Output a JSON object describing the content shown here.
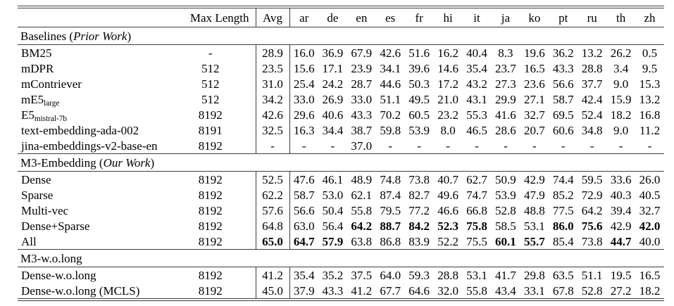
{
  "colors": {
    "text": "#000000",
    "rule": "#3c3c3c",
    "background": "#ffffff"
  },
  "header": {
    "model": "",
    "max_length": "Max Length",
    "avg": "Avg",
    "languages": [
      "ar",
      "de",
      "en",
      "es",
      "fr",
      "hi",
      "it",
      "ja",
      "ko",
      "pt",
      "ru",
      "th",
      "zh"
    ]
  },
  "sections": [
    {
      "title": {
        "prefix": "Baselines (",
        "italic": "Prior Work",
        "suffix": ")"
      },
      "rows": [
        {
          "model": "BM25",
          "subscript": "",
          "max_length": "-",
          "avg": "28.9",
          "avg_bold": false,
          "values": [
            "16.0",
            "36.9",
            "67.9",
            "42.6",
            "51.6",
            "16.2",
            "40.4",
            "8.3",
            "19.6",
            "36.2",
            "13.2",
            "26.2",
            "0.5"
          ],
          "bold": []
        },
        {
          "model": "mDPR",
          "subscript": "",
          "max_length": "512",
          "avg": "23.5",
          "avg_bold": false,
          "values": [
            "15.6",
            "17.1",
            "23.9",
            "34.1",
            "39.6",
            "14.6",
            "35.4",
            "23.7",
            "16.5",
            "43.3",
            "28.8",
            "3.4",
            "9.5"
          ],
          "bold": []
        },
        {
          "model": "mContriever",
          "subscript": "",
          "max_length": "512",
          "avg": "31.0",
          "avg_bold": false,
          "values": [
            "25.4",
            "24.2",
            "28.7",
            "44.6",
            "50.3",
            "17.2",
            "43.2",
            "27.3",
            "23.6",
            "56.6",
            "37.7",
            "9.0",
            "15.3"
          ],
          "bold": []
        },
        {
          "model": "mE5",
          "subscript": "large",
          "max_length": "512",
          "avg": "34.2",
          "avg_bold": false,
          "values": [
            "33.0",
            "26.9",
            "33.0",
            "51.1",
            "49.5",
            "21.0",
            "43.1",
            "29.9",
            "27.1",
            "58.7",
            "42.4",
            "15.9",
            "13.2"
          ],
          "bold": []
        },
        {
          "model": "E5",
          "subscript": "mistral-7b",
          "max_length": "8192",
          "avg": "42.6",
          "avg_bold": false,
          "values": [
            "29.6",
            "40.6",
            "43.3",
            "70.2",
            "60.5",
            "23.2",
            "55.3",
            "41.6",
            "32.7",
            "69.5",
            "52.4",
            "18.2",
            "16.8"
          ],
          "bold": []
        },
        {
          "model": "text-embedding-ada-002",
          "subscript": "",
          "max_length": "8191",
          "avg": "32.5",
          "avg_bold": false,
          "values": [
            "16.3",
            "34.4",
            "38.7",
            "59.8",
            "53.9",
            "8.0",
            "46.5",
            "28.6",
            "20.7",
            "60.6",
            "34.8",
            "9.0",
            "11.2"
          ],
          "bold": []
        },
        {
          "model": "jina-embeddings-v2-base-en",
          "subscript": "",
          "max_length": "8192",
          "avg": "-",
          "avg_bold": false,
          "values": [
            "-",
            "-",
            "37.0",
            "-",
            "-",
            "-",
            "-",
            "-",
            "-",
            "-",
            "-",
            "-",
            "-"
          ],
          "bold": []
        }
      ]
    },
    {
      "title": {
        "prefix": "M3-Embedding (",
        "italic": "Our Work",
        "suffix": ")"
      },
      "rows": [
        {
          "model": "Dense",
          "subscript": "",
          "max_length": "8192",
          "avg": "52.5",
          "avg_bold": false,
          "values": [
            "47.6",
            "46.1",
            "48.9",
            "74.8",
            "73.8",
            "40.7",
            "62.7",
            "50.9",
            "42.9",
            "74.4",
            "59.5",
            "33.6",
            "26.0"
          ],
          "bold": []
        },
        {
          "model": "Sparse",
          "subscript": "",
          "max_length": "8192",
          "avg": "62.2",
          "avg_bold": false,
          "values": [
            "58.7",
            "53.0",
            "62.1",
            "87.4",
            "82.7",
            "49.6",
            "74.7",
            "53.9",
            "47.9",
            "85.2",
            "72.9",
            "40.3",
            "40.5"
          ],
          "bold": []
        },
        {
          "model": "Multi-vec",
          "subscript": "",
          "max_length": "8192",
          "avg": "57.6",
          "avg_bold": false,
          "values": [
            "56.6",
            "50.4",
            "55.8",
            "79.5",
            "77.2",
            "46.6",
            "66.8",
            "52.8",
            "48.8",
            "77.5",
            "64.2",
            "39.4",
            "32.7"
          ],
          "bold": []
        },
        {
          "model": "Dense+Sparse",
          "subscript": "",
          "max_length": "8192",
          "avg": "64.8",
          "avg_bold": false,
          "values": [
            "63.0",
            "56.4",
            "64.2",
            "88.7",
            "84.2",
            "52.3",
            "75.8",
            "58.5",
            "53.1",
            "86.0",
            "75.6",
            "42.9",
            "42.0"
          ],
          "bold": [
            2,
            3,
            4,
            5,
            6,
            9,
            10,
            12
          ]
        },
        {
          "model": "All",
          "subscript": "",
          "max_length": "8192",
          "avg": "65.0",
          "avg_bold": true,
          "values": [
            "64.7",
            "57.9",
            "63.8",
            "86.8",
            "83.9",
            "52.2",
            "75.5",
            "60.1",
            "55.7",
            "85.4",
            "73.8",
            "44.7",
            "40.0"
          ],
          "bold": [
            0,
            1,
            7,
            8,
            11
          ]
        }
      ]
    },
    {
      "title": {
        "prefix": "M3-w.o.long",
        "italic": "",
        "suffix": ""
      },
      "rows": [
        {
          "model": "Dense-w.o.long",
          "subscript": "",
          "max_length": "8192",
          "avg": "41.2",
          "avg_bold": false,
          "values": [
            "35.4",
            "35.2",
            "37.5",
            "64.0",
            "59.3",
            "28.8",
            "53.1",
            "41.7",
            "29.8",
            "63.5",
            "51.1",
            "19.5",
            "16.5"
          ],
          "bold": []
        },
        {
          "model": "Dense-w.o.long (MCLS)",
          "subscript": "",
          "max_length": "8192",
          "avg": "45.0",
          "avg_bold": false,
          "values": [
            "37.9",
            "43.3",
            "41.2",
            "67.7",
            "64.6",
            "32.0",
            "55.8",
            "43.4",
            "33.1",
            "67.8",
            "52.8",
            "27.2",
            "18.2"
          ],
          "bold": []
        }
      ]
    }
  ]
}
